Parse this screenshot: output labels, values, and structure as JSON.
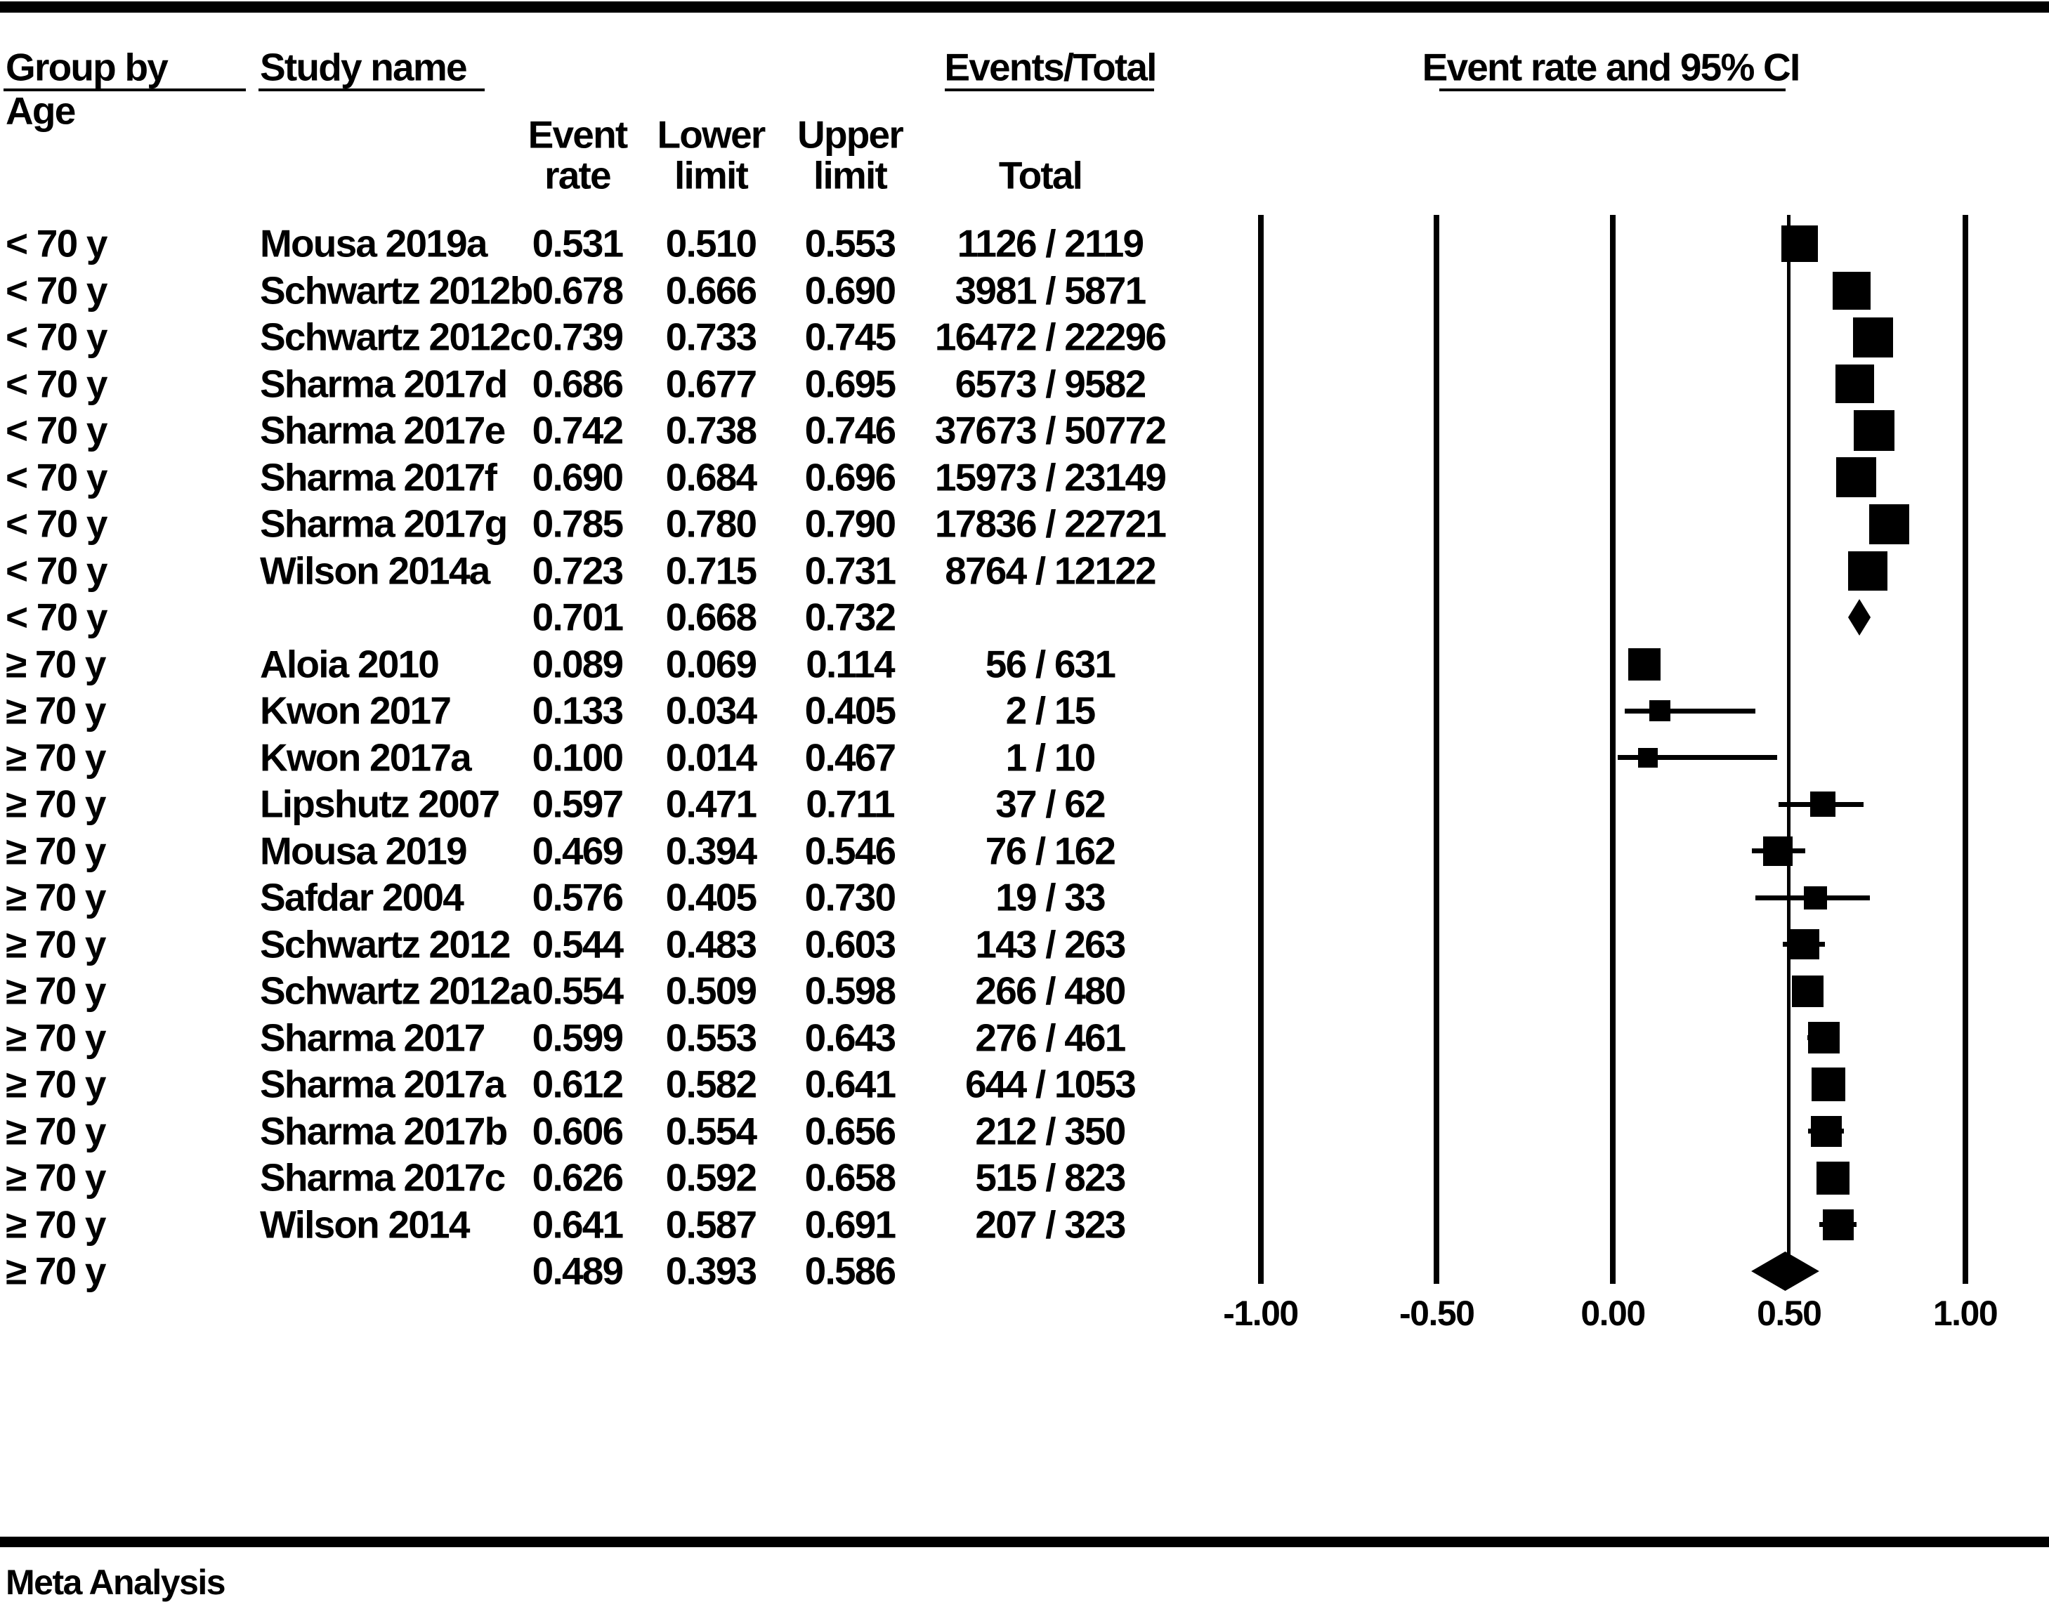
{
  "header": {
    "group_by": "Group by",
    "group_by_sub": "Age",
    "study_name": "Study name",
    "event_col_line1": "Event",
    "event_col_line2": "rate",
    "lower_col_line1": "Lower",
    "lower_col_line2": "limit",
    "upper_col_line1": "Upper",
    "upper_col_line2": "limit",
    "events_total": "Events/Total",
    "total": "Total",
    "ci_header": "Event rate and 95% CI"
  },
  "footer": {
    "label": "Meta Analysis"
  },
  "colors": {
    "ink": "#000000",
    "background": "#ffffff"
  },
  "chart_data": {
    "type": "forest",
    "title": "Event rate and 95% CI",
    "grouping_label": "Age",
    "x_axis": {
      "ticks": [
        -1.0,
        -0.5,
        0.0,
        0.5,
        1.0
      ],
      "tick_labels": [
        "-1.00",
        "-0.50",
        "0.00",
        "0.50",
        "1.00"
      ],
      "range": [
        -1.0,
        1.0
      ],
      "grid": true,
      "position": "bottom"
    },
    "marker_note": "square size encodes study weight; diamonds are pooled summaries",
    "rows": [
      {
        "group": "< 70 y",
        "study": "Mousa 2019a",
        "rate": "0.531",
        "lower": "0.510",
        "upper": "0.553",
        "events_total": "1126 / 2119",
        "kind": "study",
        "size": 52
      },
      {
        "group": "< 70 y",
        "study": "Schwartz 2012b",
        "rate": "0.678",
        "lower": "0.666",
        "upper": "0.690",
        "events_total": "3981 / 5871",
        "kind": "study",
        "size": 54
      },
      {
        "group": "< 70 y",
        "study": "Schwartz 2012c",
        "rate": "0.739",
        "lower": "0.733",
        "upper": "0.745",
        "events_total": "16472 / 22296",
        "kind": "study",
        "size": 57
      },
      {
        "group": "< 70 y",
        "study": "Sharma 2017d",
        "rate": "0.686",
        "lower": "0.677",
        "upper": "0.695",
        "events_total": "6573 / 9582",
        "kind": "study",
        "size": 55
      },
      {
        "group": "< 70 y",
        "study": "Sharma 2017e",
        "rate": "0.742",
        "lower": "0.738",
        "upper": "0.746",
        "events_total": "37673 / 50772",
        "kind": "study",
        "size": 58
      },
      {
        "group": "< 70 y",
        "study": "Sharma 2017f",
        "rate": "0.690",
        "lower": "0.684",
        "upper": "0.696",
        "events_total": "15973 / 23149",
        "kind": "study",
        "size": 57
      },
      {
        "group": "< 70 y",
        "study": "Sharma 2017g",
        "rate": "0.785",
        "lower": "0.780",
        "upper": "0.790",
        "events_total": "17836 / 22721",
        "kind": "study",
        "size": 57
      },
      {
        "group": "< 70 y",
        "study": "Wilson 2014a",
        "rate": "0.723",
        "lower": "0.715",
        "upper": "0.731",
        "events_total": "8764 / 12122",
        "kind": "study",
        "size": 56
      },
      {
        "group": "< 70 y",
        "study": "",
        "rate": "0.701",
        "lower": "0.668",
        "upper": "0.732",
        "events_total": "",
        "kind": "summary",
        "size": 52
      },
      {
        "group": "≥ 70 y",
        "study": "Aloia 2010",
        "rate": "0.089",
        "lower": "0.069",
        "upper": "0.114",
        "events_total": "56 / 631",
        "kind": "study",
        "size": 46
      },
      {
        "group": "≥ 70 y",
        "study": "Kwon 2017",
        "rate": "0.133",
        "lower": "0.034",
        "upper": "0.405",
        "events_total": "2 / 15",
        "kind": "study",
        "size": 30
      },
      {
        "group": "≥ 70 y",
        "study": "Kwon 2017a",
        "rate": "0.100",
        "lower": "0.014",
        "upper": "0.467",
        "events_total": "1 / 10",
        "kind": "study",
        "size": 28
      },
      {
        "group": "≥ 70 y",
        "study": "Lipshutz 2007",
        "rate": "0.597",
        "lower": "0.471",
        "upper": "0.711",
        "events_total": "37 / 62",
        "kind": "study",
        "size": 36
      },
      {
        "group": "≥ 70 y",
        "study": "Mousa 2019",
        "rate": "0.469",
        "lower": "0.394",
        "upper": "0.546",
        "events_total": "76 / 162",
        "kind": "study",
        "size": 42
      },
      {
        "group": "≥ 70 y",
        "study": "Safdar 2004",
        "rate": "0.576",
        "lower": "0.405",
        "upper": "0.730",
        "events_total": "19 / 33",
        "kind": "study",
        "size": 33
      },
      {
        "group": "≥ 70 y",
        "study": "Schwartz 2012",
        "rate": "0.544",
        "lower": "0.483",
        "upper": "0.603",
        "events_total": "143 / 263",
        "kind": "study",
        "size": 43
      },
      {
        "group": "≥ 70 y",
        "study": "Schwartz 2012a",
        "rate": "0.554",
        "lower": "0.509",
        "upper": "0.598",
        "events_total": "266 / 480",
        "kind": "study",
        "size": 45
      },
      {
        "group": "≥ 70 y",
        "study": "Sharma 2017",
        "rate": "0.599",
        "lower": "0.553",
        "upper": "0.643",
        "events_total": "276 / 461",
        "kind": "study",
        "size": 45
      },
      {
        "group": "≥ 70 y",
        "study": "Sharma 2017a",
        "rate": "0.612",
        "lower": "0.582",
        "upper": "0.641",
        "events_total": "644 / 1053",
        "kind": "study",
        "size": 48
      },
      {
        "group": "≥ 70 y",
        "study": "Sharma 2017b",
        "rate": "0.606",
        "lower": "0.554",
        "upper": "0.656",
        "events_total": "212 / 350",
        "kind": "study",
        "size": 44
      },
      {
        "group": "≥ 70 y",
        "study": "Sharma 2017c",
        "rate": "0.626",
        "lower": "0.592",
        "upper": "0.658",
        "events_total": "515 / 823",
        "kind": "study",
        "size": 47
      },
      {
        "group": "≥ 70 y",
        "study": "Wilson 2014",
        "rate": "0.641",
        "lower": "0.587",
        "upper": "0.691",
        "events_total": "207 / 323",
        "kind": "study",
        "size": 44
      },
      {
        "group": "≥ 70 y",
        "study": "",
        "rate": "0.489",
        "lower": "0.393",
        "upper": "0.586",
        "events_total": "",
        "kind": "summary",
        "size": 56
      }
    ]
  }
}
